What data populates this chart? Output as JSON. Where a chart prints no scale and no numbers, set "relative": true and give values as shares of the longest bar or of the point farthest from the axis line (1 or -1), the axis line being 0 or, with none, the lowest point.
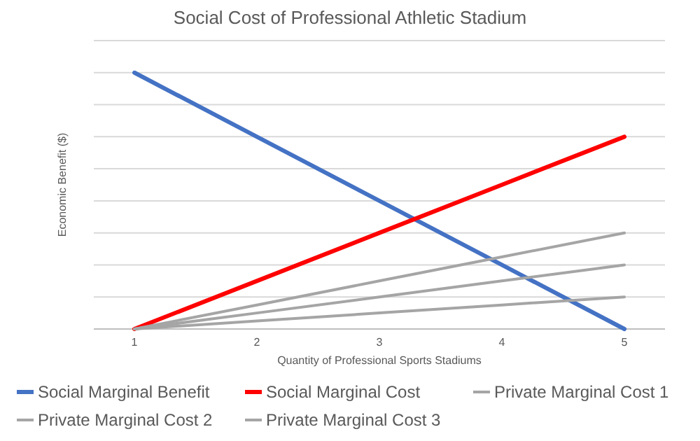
{
  "chart_data": {
    "type": "line",
    "title": "Social Cost of Professional Athletic Stadium",
    "xlabel": "Quantity of Professional Sports Stadiums",
    "ylabel": "Economic Benefit ($)",
    "categories": [
      "1",
      "2",
      "3",
      "4",
      "5"
    ],
    "relative": true,
    "grid": "y",
    "legend": "bottom",
    "marker": "none",
    "series": [
      {
        "name": "Social Marginal Benefit",
        "color": "#4472c4",
        "values": [
          1,
          0.75,
          0.5,
          0.25,
          0
        ]
      },
      {
        "name": "Social Marginal Cost",
        "color": "#ff0000",
        "values": [
          0,
          0.1875,
          0.375,
          0.5625,
          0.75
        ]
      },
      {
        "name": "Private Marginal Cost 1",
        "color": "#a5a5a5",
        "values": [
          0,
          0.09375,
          0.1875,
          0.28125,
          0.375
        ]
      },
      {
        "name": "Private Marginal Cost 2",
        "color": "#a5a5a5",
        "values": [
          0,
          0.0625,
          0.125,
          0.1875,
          0.25
        ]
      },
      {
        "name": "Private Marginal Cost 3",
        "color": "#a5a5a5",
        "values": [
          0,
          0.03125,
          0.0625,
          0.09375,
          0.125
        ]
      }
    ]
  }
}
